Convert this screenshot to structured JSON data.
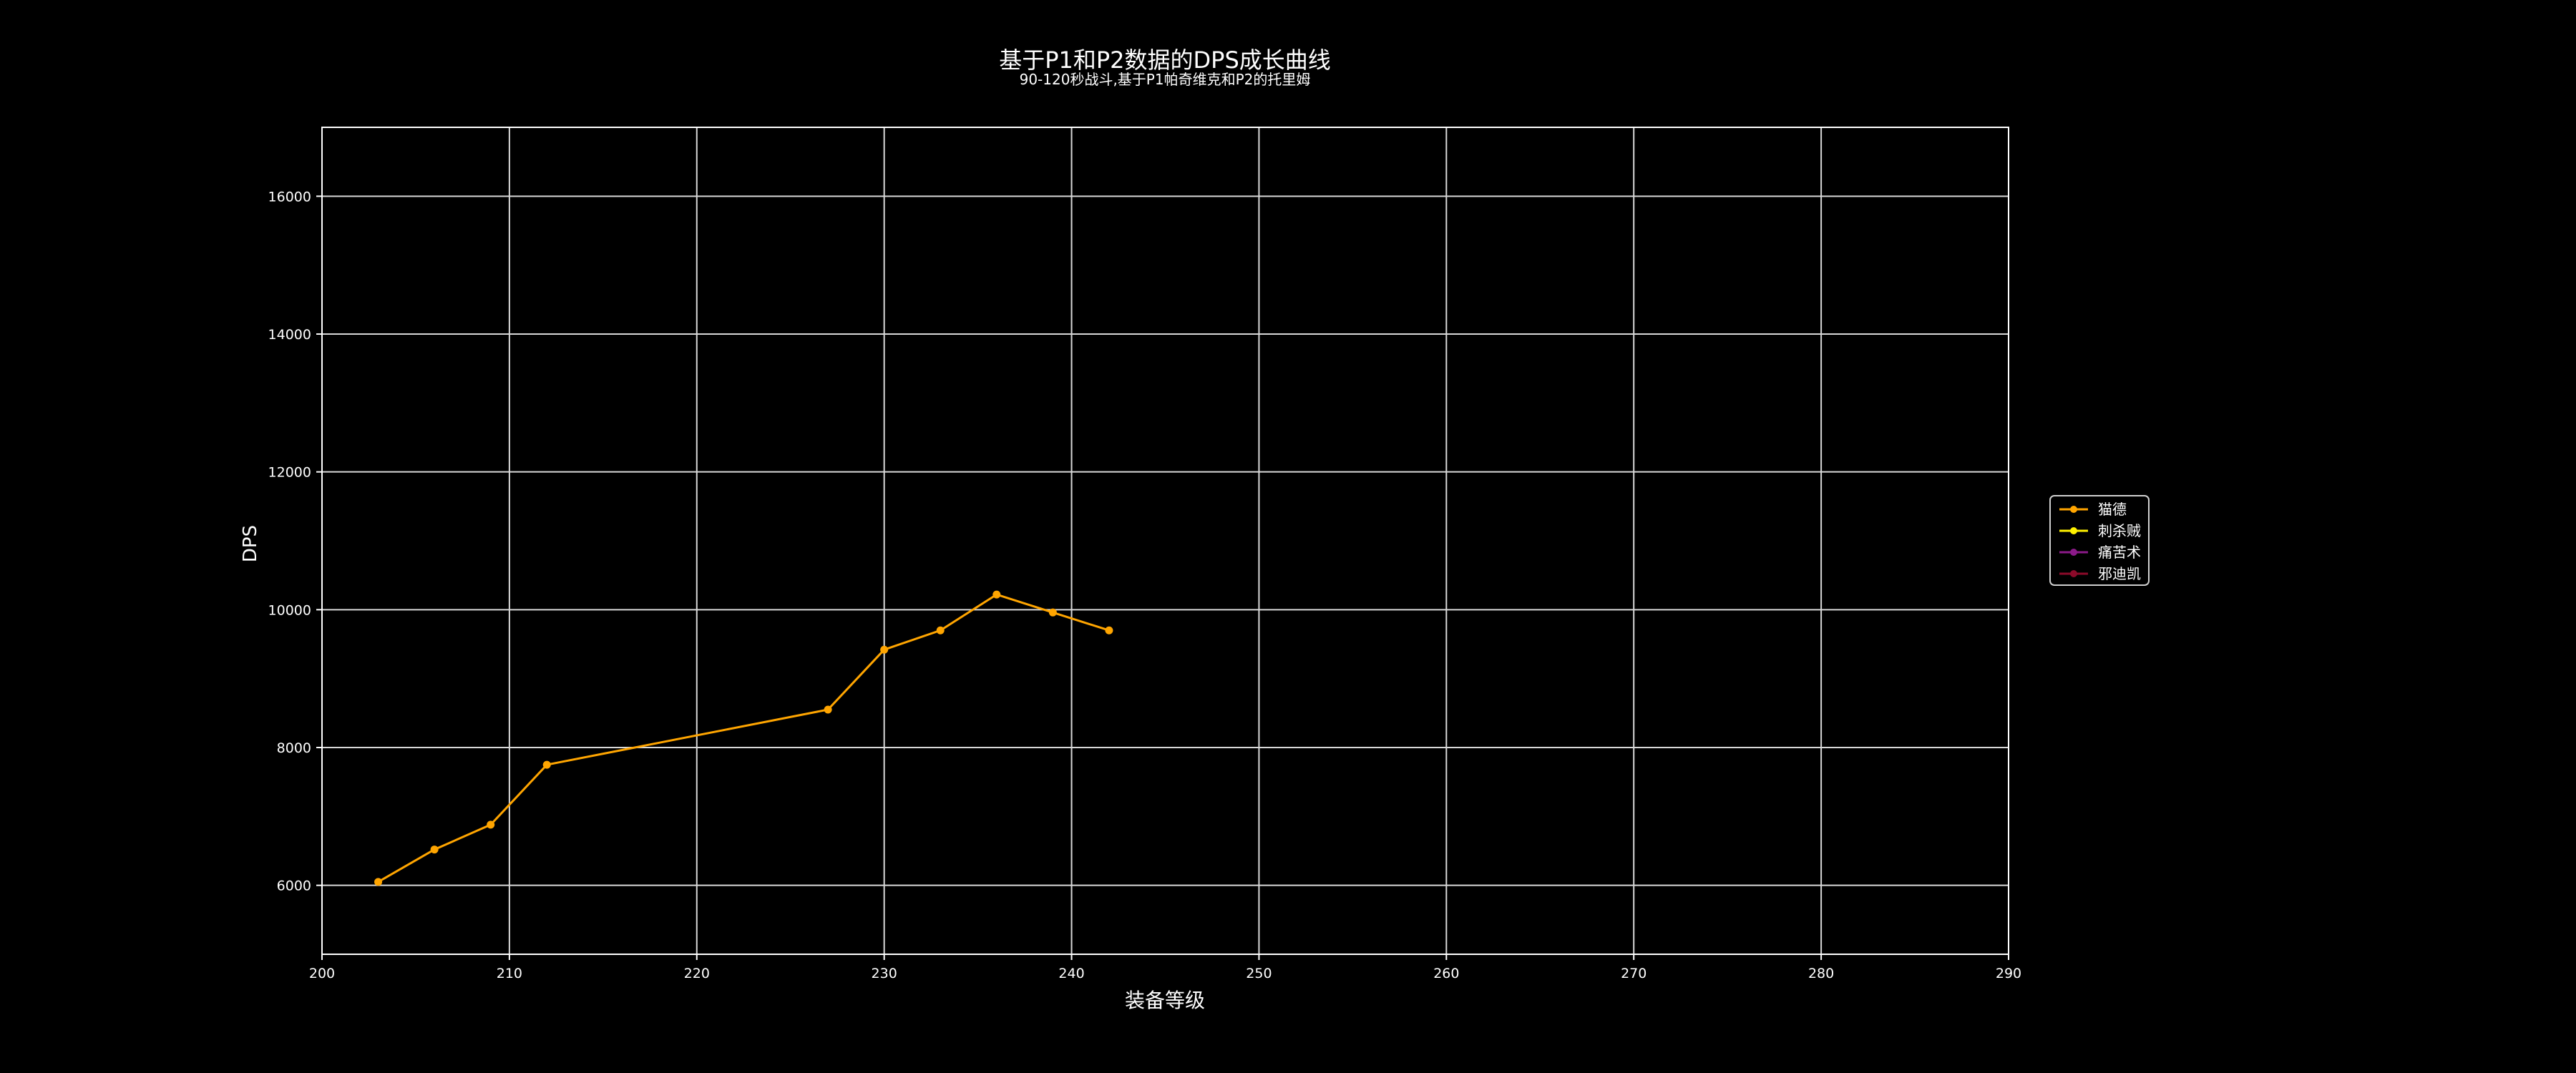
{
  "chart_data": {
    "type": "line",
    "title": "基于P1和P2数据的DPS成长曲线",
    "subtitle": "90-120秒战斗,基于P1帕奇维克和P2的托里姆",
    "xlabel": "装备等级",
    "ylabel": "DPS",
    "xlim": [
      200,
      290
    ],
    "ylim": [
      5000,
      17000
    ],
    "xticks": [
      200,
      210,
      220,
      230,
      240,
      250,
      260,
      270,
      280,
      290
    ],
    "yticks": [
      6000,
      8000,
      10000,
      12000,
      14000,
      16000
    ],
    "grid": true,
    "legend_position": "center-right",
    "series": [
      {
        "name": "猫德",
        "color": "#FFA500",
        "x": [
          203,
          206,
          209,
          212,
          227,
          230,
          233,
          236,
          239,
          242
        ],
        "y": [
          6050,
          6520,
          6880,
          7750,
          8550,
          9420,
          9700,
          10220,
          9960,
          9700
        ]
      },
      {
        "name": "刺杀贼",
        "color": "#FFF200",
        "x": [],
        "y": []
      },
      {
        "name": "痛苦术",
        "color": "#8B1A89",
        "x": [],
        "y": []
      },
      {
        "name": "邪迪凯",
        "color": "#8B0A2A",
        "x": [],
        "y": []
      }
    ]
  }
}
